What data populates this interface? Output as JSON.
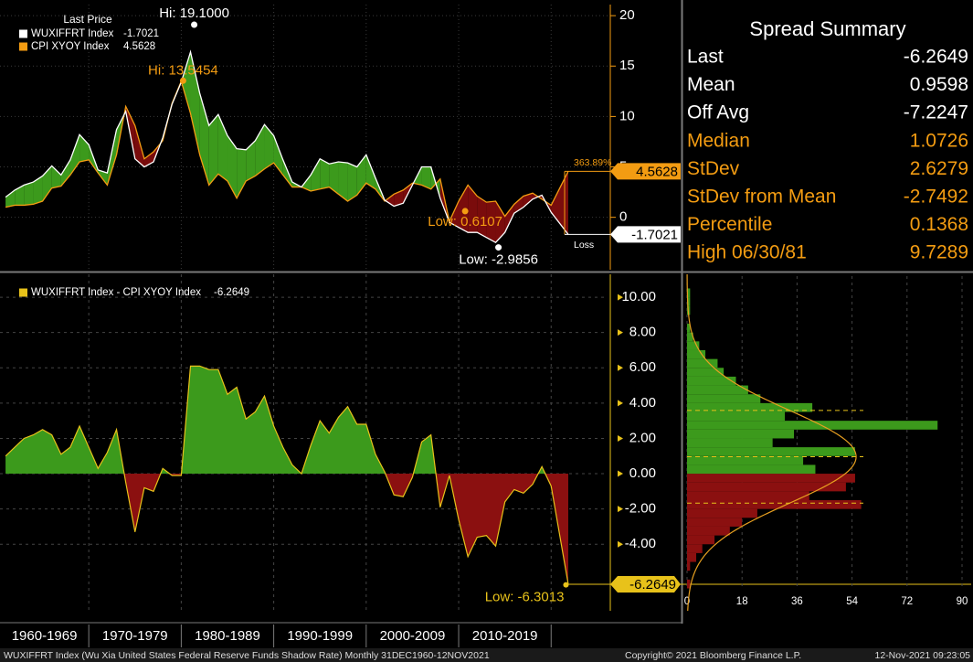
{
  "chart_data": [
    {
      "type": "line",
      "legend_title": "Last Price",
      "x": [
        1961,
        1962,
        1963,
        1964,
        1965,
        1966,
        1967,
        1968,
        1969,
        1970,
        1971,
        1972,
        1973,
        1974,
        1975,
        1976,
        1977,
        1978,
        1979,
        1980,
        1981,
        1982,
        1983,
        1984,
        1985,
        1986,
        1987,
        1988,
        1989,
        1990,
        1991,
        1992,
        1993,
        1994,
        1995,
        1996,
        1997,
        1998,
        1999,
        2000,
        2001,
        2002,
        2003,
        2004,
        2005,
        2006,
        2007,
        2008,
        2009,
        2010,
        2011,
        2012,
        2013,
        2014,
        2015,
        2016,
        2017,
        2018,
        2019,
        2020,
        2021.85
      ],
      "series": [
        {
          "name": "WUXIFFRT Index",
          "color": "#ffffff",
          "last": -1.7021,
          "values": [
            2.0,
            2.7,
            3.2,
            3.5,
            4.1,
            5.1,
            4.2,
            5.7,
            8.2,
            7.2,
            4.7,
            4.4,
            8.7,
            10.5,
            5.8,
            5.0,
            5.5,
            7.9,
            11.2,
            13.4,
            16.4,
            12.3,
            9.1,
            10.2,
            8.1,
            6.8,
            6.7,
            7.6,
            9.2,
            8.1,
            5.7,
            3.5,
            3.0,
            4.2,
            5.8,
            5.3,
            5.5,
            5.4,
            5.0,
            6.2,
            3.9,
            1.7,
            1.1,
            1.4,
            3.2,
            5.0,
            5.0,
            1.9,
            -0.5,
            -1.0,
            -1.5,
            -1.5,
            -2.0,
            -2.5,
            -1.5,
            0.4,
            1.0,
            1.8,
            2.2,
            0.5,
            -1.7021
          ]
        },
        {
          "name": "CPI XYOY Index",
          "color": "#f39c12",
          "last": 4.5628,
          "values": [
            1.0,
            1.2,
            1.2,
            1.3,
            1.6,
            2.9,
            3.1,
            4.2,
            5.5,
            5.7,
            4.4,
            3.2,
            6.2,
            11.0,
            9.1,
            5.8,
            6.5,
            7.6,
            11.3,
            13.5,
            10.3,
            6.2,
            3.2,
            4.3,
            3.6,
            1.9,
            3.6,
            4.1,
            4.8,
            5.4,
            4.2,
            3.0,
            3.0,
            2.6,
            2.8,
            3.0,
            2.3,
            1.6,
            2.2,
            3.4,
            2.8,
            1.6,
            2.3,
            2.7,
            3.4,
            3.2,
            2.8,
            3.8,
            -0.4,
            1.6,
            3.2,
            2.1,
            1.5,
            1.6,
            0.1,
            1.3,
            2.1,
            2.4,
            1.8,
            1.2,
            4.5628
          ]
        }
      ],
      "gain_color": "#3c9a1c",
      "loss_color": "#7a0c0c",
      "xlim": [
        1960.4,
        2026.1
      ],
      "xticks": [
        1960,
        1970,
        1980,
        1990,
        2000,
        2010,
        2020
      ],
      "ylim": [
        -5.2,
        21.1
      ],
      "yticks": [
        0,
        5,
        10,
        15,
        20
      ],
      "grid": true,
      "annotations": [
        {
          "label": "Hi: 19.1000",
          "x": 1981.4,
          "value": 19.1,
          "color": "#ffffff"
        },
        {
          "label": "Hi: 13.5454",
          "x": 1980.2,
          "value": 13.5454,
          "color": "#f39c12"
        },
        {
          "label": "Low: 0.6107",
          "x": 2010.7,
          "value": 0.6107,
          "color": "#f39c12"
        },
        {
          "label": "Low: -2.9856",
          "x": 2014.3,
          "value": -2.9856,
          "color": "#ffffff"
        }
      ],
      "change_label": "363.89%",
      "loss_label": "Loss"
    },
    {
      "type": "area",
      "x": [
        1961,
        1962,
        1963,
        1964,
        1965,
        1966,
        1967,
        1968,
        1969,
        1970,
        1971,
        1972,
        1973,
        1974,
        1975,
        1976,
        1977,
        1978,
        1979,
        1980,
        1981,
        1982,
        1983,
        1984,
        1985,
        1986,
        1987,
        1988,
        1989,
        1990,
        1991,
        1992,
        1993,
        1994,
        1995,
        1996,
        1997,
        1998,
        1999,
        2000,
        2001,
        2002,
        2003,
        2004,
        2005,
        2006,
        2007,
        2008,
        2009,
        2010,
        2011,
        2012,
        2013,
        2014,
        2015,
        2016,
        2017,
        2018,
        2019,
        2020,
        2021.85
      ],
      "series": [
        {
          "name": "WUXIFFRT Index - CPI XYOY Index",
          "color": "#e8c21a",
          "last": -6.2649,
          "values": [
            1.0,
            1.5,
            2.0,
            2.2,
            2.5,
            2.2,
            1.1,
            1.5,
            2.7,
            1.5,
            0.3,
            1.2,
            2.5,
            -0.5,
            -3.3,
            -0.8,
            -1.0,
            0.3,
            -0.1,
            -0.1,
            6.1,
            6.1,
            5.9,
            5.9,
            4.5,
            4.9,
            3.1,
            3.5,
            4.4,
            2.7,
            1.5,
            0.5,
            0.0,
            1.6,
            3.0,
            2.3,
            3.2,
            3.8,
            2.8,
            2.8,
            1.1,
            0.1,
            -1.2,
            -1.3,
            -0.2,
            1.8,
            2.2,
            -1.9,
            -0.1,
            -2.6,
            -4.7,
            -3.6,
            -3.5,
            -4.1,
            -1.6,
            -0.9,
            -1.1,
            -0.6,
            0.4,
            -0.7,
            -6.2649
          ]
        }
      ],
      "positive_color": "#3c9a1c",
      "negative_color": "#8b1010",
      "xlim": [
        1960.4,
        2026.1
      ],
      "xticks": [
        1960,
        1970,
        1980,
        1990,
        2000,
        2010,
        2020
      ],
      "categories": [
        "1960-1969",
        "1970-1979",
        "1980-1989",
        "1990-1999",
        "2000-2009",
        "2010-2019"
      ],
      "ylim": [
        -7.77,
        11.3
      ],
      "yticks": [
        {
          "value": 10,
          "label": "10.00"
        },
        {
          "value": 8,
          "label": "8.00"
        },
        {
          "value": 6,
          "label": "6.00"
        },
        {
          "value": 4,
          "label": "4.00"
        },
        {
          "value": 2,
          "label": "2.00"
        },
        {
          "value": 0,
          "label": "0.00"
        },
        {
          "value": -2,
          "label": "-2.00"
        },
        {
          "value": -4,
          "label": "-4.00"
        }
      ],
      "grid": true,
      "annotations": [
        {
          "label": "Low: -6.3013",
          "x": 2021.6,
          "value": -6.3013,
          "color": "#e8c21a"
        }
      ]
    },
    {
      "type": "histogram",
      "orientation": "horizontal",
      "bins": [
        -6.5,
        -6,
        -5.5,
        -5,
        -4.5,
        -4,
        -3.5,
        -3,
        -2.5,
        -2,
        -1.5,
        -1,
        -0.5,
        0,
        0.5,
        1,
        1.5,
        2,
        2.5,
        3,
        3.5,
        4,
        4.5,
        5,
        5.5,
        6,
        6.5,
        7,
        7.5,
        8,
        8.5,
        9,
        9.5,
        10,
        10.5
      ],
      "counts": [
        1,
        0,
        1,
        3,
        5,
        9,
        14,
        18,
        23,
        57,
        40,
        52,
        55,
        42,
        38,
        55,
        28,
        35,
        82,
        32,
        41,
        24,
        20,
        16,
        12,
        10,
        6,
        4,
        2,
        1,
        0,
        1,
        1,
        1
      ],
      "color": "#3c9a1c",
      "negative_color": "#8b1010",
      "curve_color": "#e8a020",
      "xlim": [
        0,
        90
      ],
      "xticks": [
        0,
        18,
        36,
        54,
        72,
        90
      ],
      "ylim": [
        -7.77,
        11.3
      ],
      "grid": true
    }
  ],
  "summary": {
    "title": "Spread Summary",
    "rows": [
      {
        "label": "Last",
        "value": -6.2649,
        "color": "#ffffff"
      },
      {
        "label": "Mean",
        "value": 0.9598,
        "color": "#ffffff"
      },
      {
        "label": "Off Avg",
        "value": -7.2247,
        "color": "#ffffff"
      },
      {
        "label": "Median",
        "value": 1.0726,
        "color": "#f39c12"
      },
      {
        "label": "StDev",
        "value": 2.6279,
        "color": "#f39c12"
      },
      {
        "label": "StDev from Mean",
        "value": -2.7492,
        "color": "#f39c12"
      },
      {
        "label": "Percentile",
        "value": 0.1368,
        "color": "#f39c12"
      },
      {
        "label": "High 06/30/81",
        "value": 9.7289,
        "color": "#f39c12"
      }
    ]
  },
  "footer": {
    "description": "WUXIFFRT Index (Wu Xia United States Federal Reserve Funds Shadow Rate)  Monthly 31DEC1960-12NOV2021",
    "copyright": "Copyright© 2021 Bloomberg Finance L.P.",
    "timestamp": "12-Nov-2021 09:23:05"
  }
}
